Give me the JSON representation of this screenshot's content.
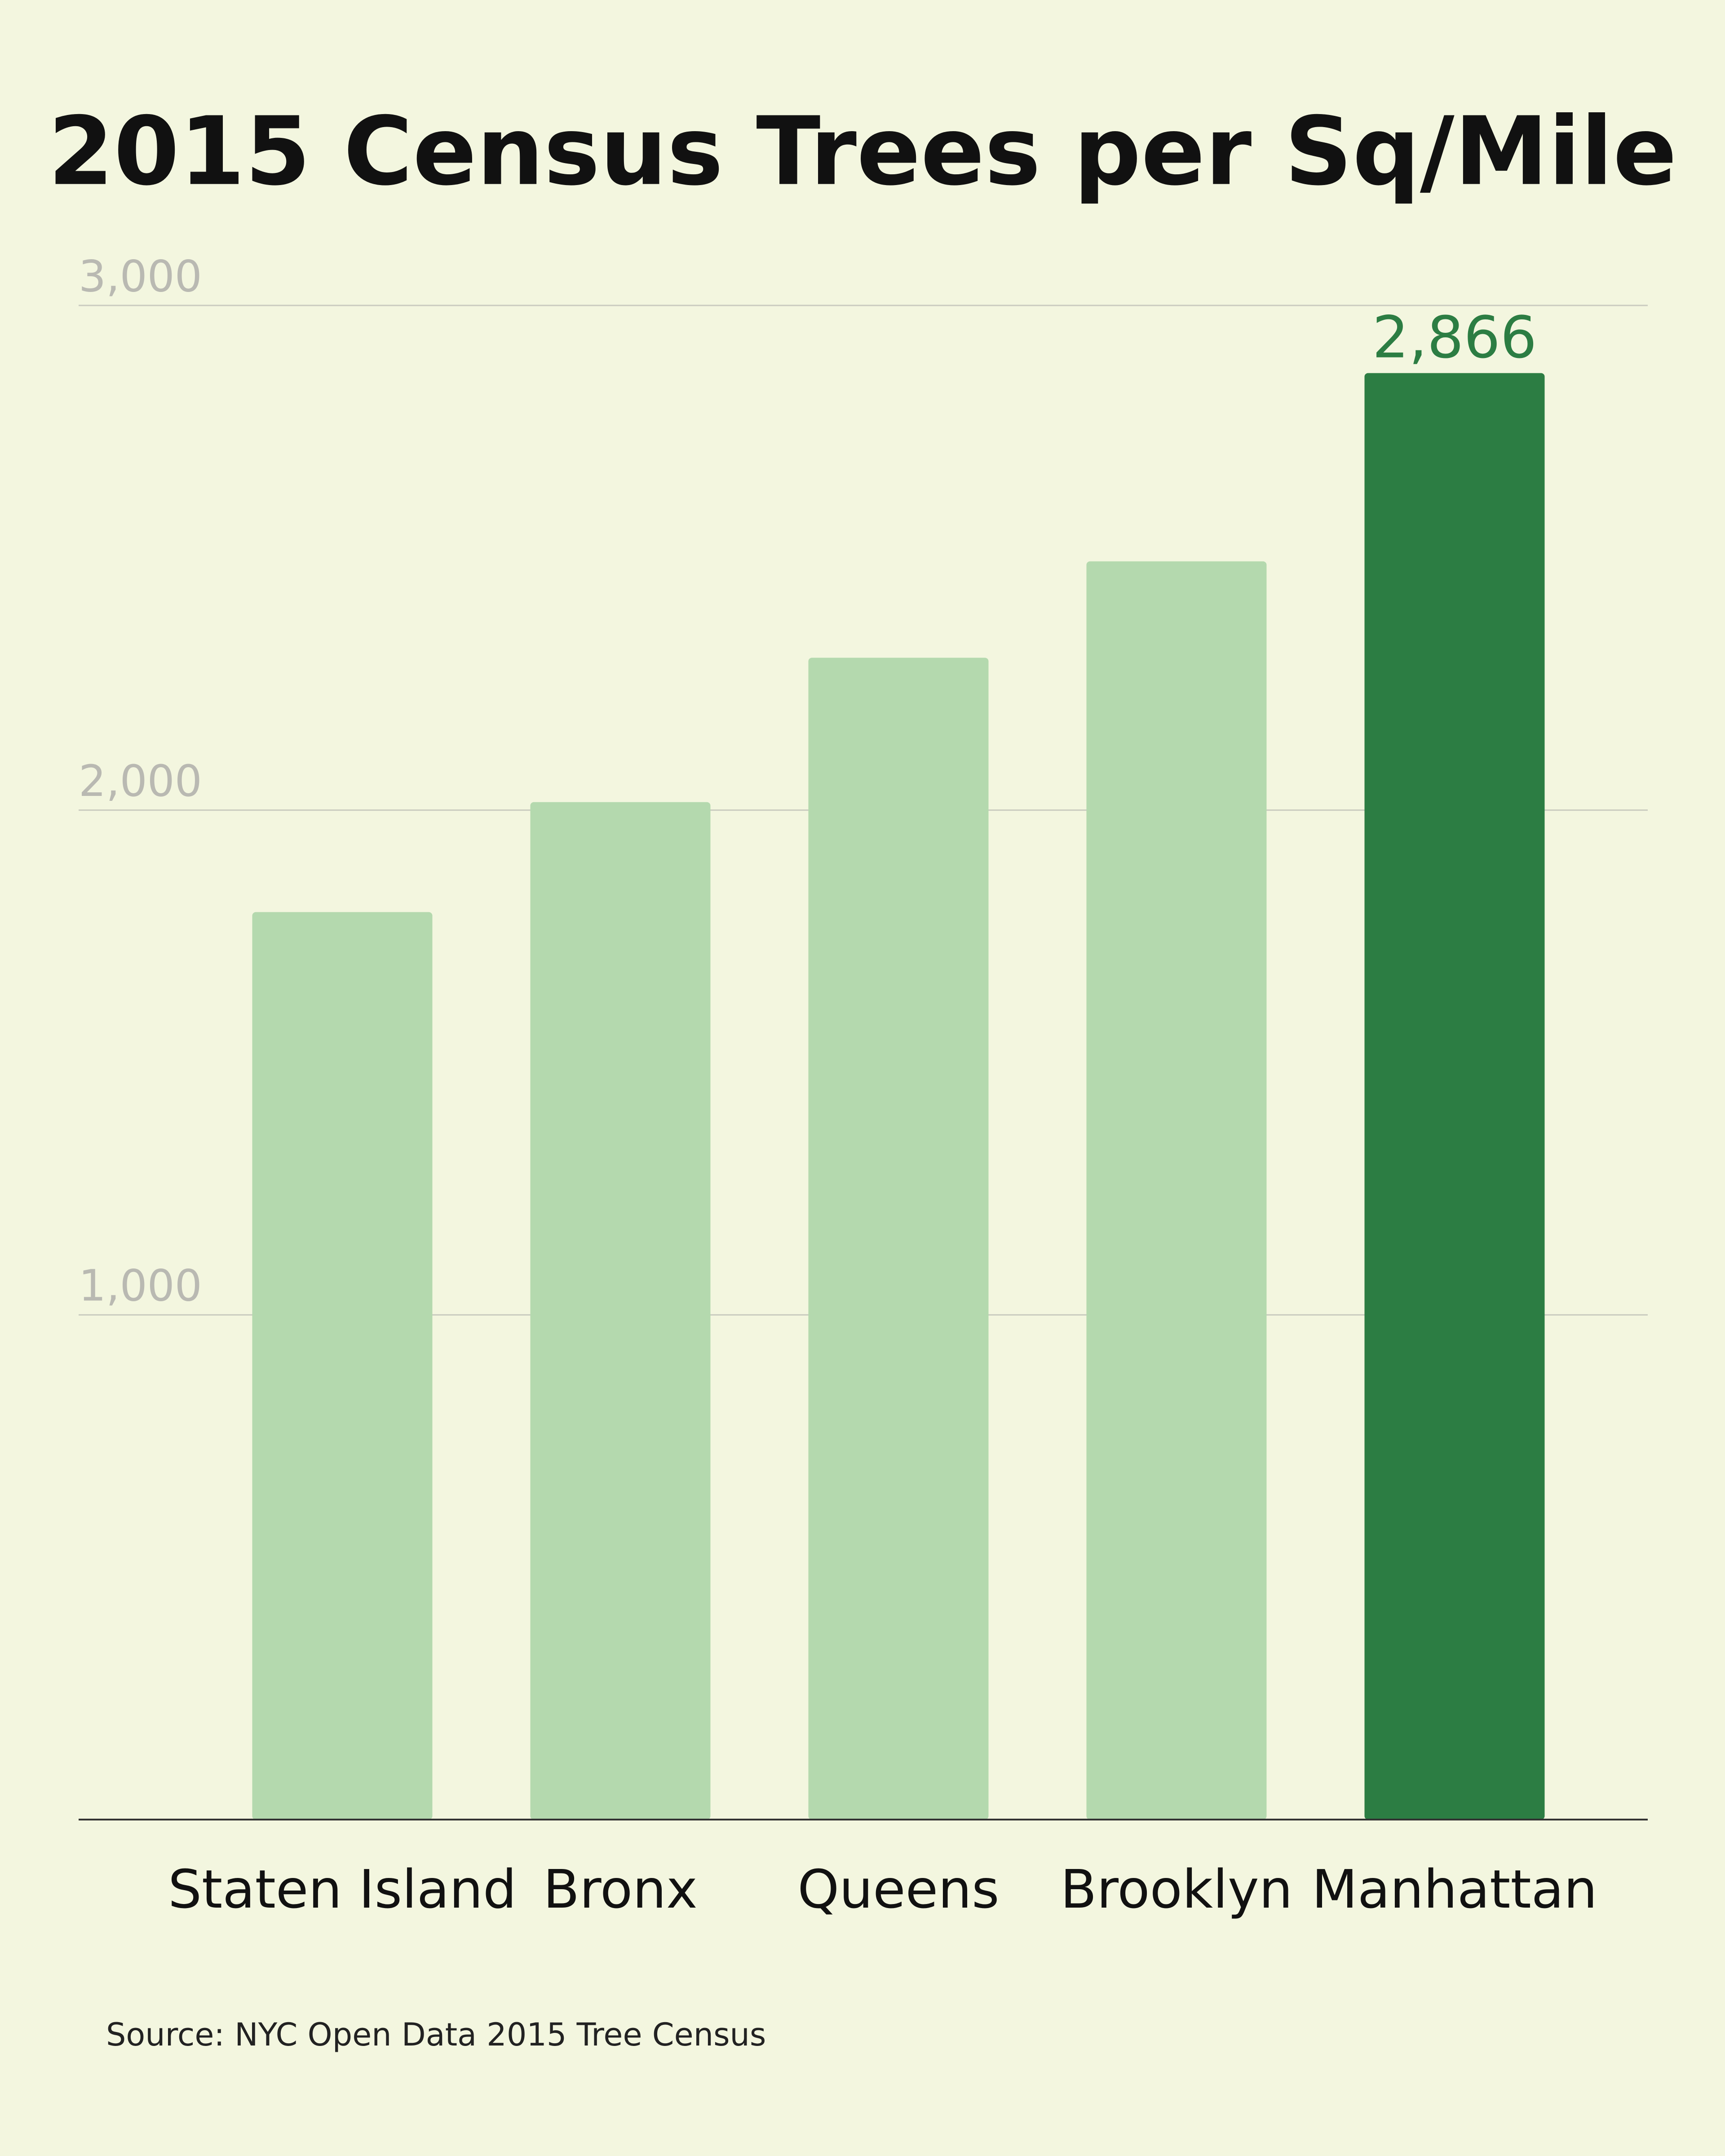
{
  "chart_data": {
    "type": "bar",
    "title": "2015 Census Trees per Sq/Mile",
    "categories": [
      "Staten Island",
      "Bronx",
      "Queens",
      "Brooklyn",
      "Manhattan"
    ],
    "values": [
      1798,
      2016,
      2302,
      2493,
      2866
    ],
    "value_labels": [
      null,
      null,
      null,
      null,
      "2,866"
    ],
    "colors": [
      "#b4d9ae",
      "#b4d9ae",
      "#b4d9ae",
      "#b4d9ae",
      "#2c7d43"
    ],
    "ylim": [
      0,
      3000
    ],
    "yticks": [
      {
        "value": 1000,
        "label": "1,000"
      },
      {
        "value": 2000,
        "label": "2,000"
      },
      {
        "value": 3000,
        "label": "3,000"
      }
    ],
    "grid": true,
    "source": "Source: NYC Open Data 2015 Tree Census"
  }
}
